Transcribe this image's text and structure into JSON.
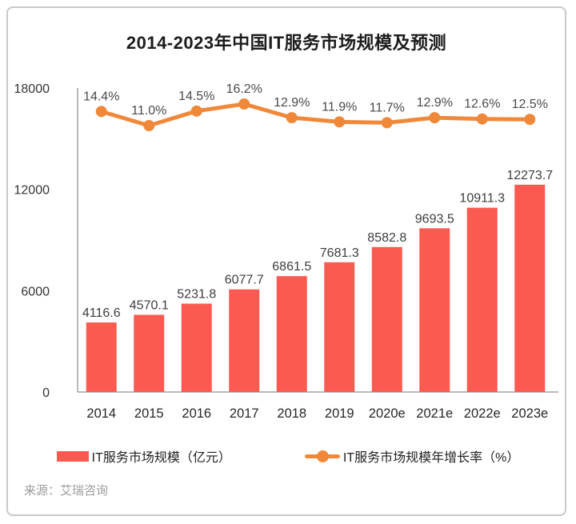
{
  "title": "2014-2023年中国IT服务市场规模及预测",
  "source": "来源：艾瑞咨询",
  "legend": {
    "bar_label": "IT服务市场规模（亿元）",
    "line_label": "IT服务市场规模年增长率（%）"
  },
  "colors": {
    "bar": "#FA5A50",
    "line": "#F0883A",
    "axis": "#a3a3a3",
    "tick_label": "#333333",
    "x_label": "#262626",
    "bar_value_label": "#3d3d3d",
    "percent_label": "#4a4a4a",
    "title": "#1c1c1c",
    "source": "#9b9b9b"
  },
  "chart_data": {
    "type": "bar",
    "subtype": "bar+line-combo",
    "title": "2014-2023年中国IT服务市场规模及预测",
    "categories": [
      "2014",
      "2015",
      "2016",
      "2017",
      "2018",
      "2019",
      "2020e",
      "2021e",
      "2022e",
      "2023e"
    ],
    "series": [
      {
        "name": "IT服务市场规模（亿元）",
        "type": "bar",
        "values": [
          4116.6,
          4570.1,
          5231.8,
          6077.7,
          6861.5,
          7681.3,
          8582.8,
          9693.5,
          10911.3,
          12273.7
        ]
      },
      {
        "name": "IT服务市场规模年增长率（%）",
        "type": "line",
        "values": [
          14.4,
          11.0,
          14.5,
          16.2,
          12.9,
          11.9,
          11.7,
          12.9,
          12.6,
          12.5
        ]
      }
    ],
    "yticks": [
      0,
      6000,
      12000,
      18000
    ],
    "ylim": [
      0,
      18000
    ],
    "xlabel": "",
    "ylabel": "",
    "grid": false,
    "legend_position": "bottom"
  }
}
